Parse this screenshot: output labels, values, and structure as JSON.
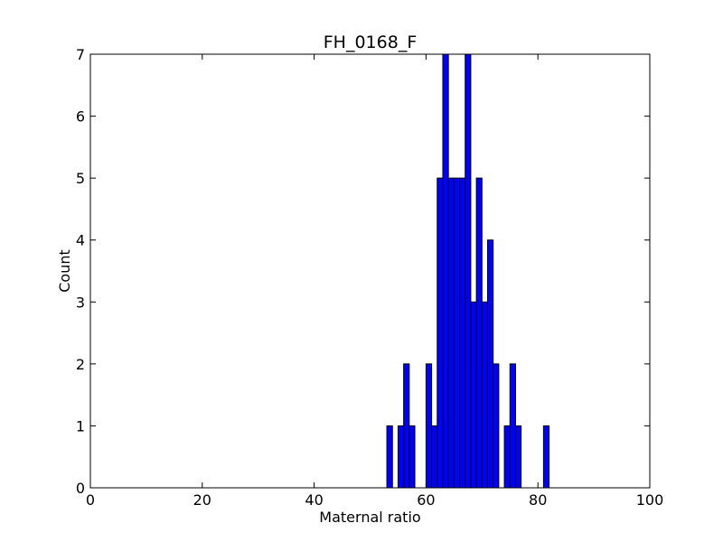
{
  "chart_data": {
    "type": "bar",
    "title": "FH_0168_F",
    "xlabel": "Maternal ratio",
    "ylabel": "Count",
    "xlim": [
      0,
      100
    ],
    "ylim": [
      0,
      7
    ],
    "x_ticks": [
      0,
      20,
      40,
      60,
      80,
      100
    ],
    "y_ticks": [
      0,
      1,
      2,
      3,
      4,
      5,
      6,
      7
    ],
    "x_tick_labels": [
      "0",
      "20",
      "40",
      "60",
      "80",
      "100"
    ],
    "y_tick_labels": [
      "0",
      "1",
      "2",
      "3",
      "4",
      "5",
      "6",
      "7"
    ],
    "grid": false,
    "bin_width": 1,
    "bar_color": "#0000ff",
    "bar_edge_color": "#000000",
    "bins": [
      {
        "x": 53,
        "count": 1
      },
      {
        "x": 55,
        "count": 1
      },
      {
        "x": 56,
        "count": 2
      },
      {
        "x": 57,
        "count": 1
      },
      {
        "x": 60,
        "count": 2
      },
      {
        "x": 61,
        "count": 1
      },
      {
        "x": 62,
        "count": 5
      },
      {
        "x": 63,
        "count": 7
      },
      {
        "x": 64,
        "count": 5
      },
      {
        "x": 65,
        "count": 5
      },
      {
        "x": 66,
        "count": 5
      },
      {
        "x": 67,
        "count": 7
      },
      {
        "x": 68,
        "count": 3
      },
      {
        "x": 69,
        "count": 5
      },
      {
        "x": 70,
        "count": 3
      },
      {
        "x": 71,
        "count": 4
      },
      {
        "x": 72,
        "count": 2
      },
      {
        "x": 74,
        "count": 1
      },
      {
        "x": 75,
        "count": 2
      },
      {
        "x": 76,
        "count": 1
      },
      {
        "x": 81,
        "count": 1
      }
    ]
  }
}
